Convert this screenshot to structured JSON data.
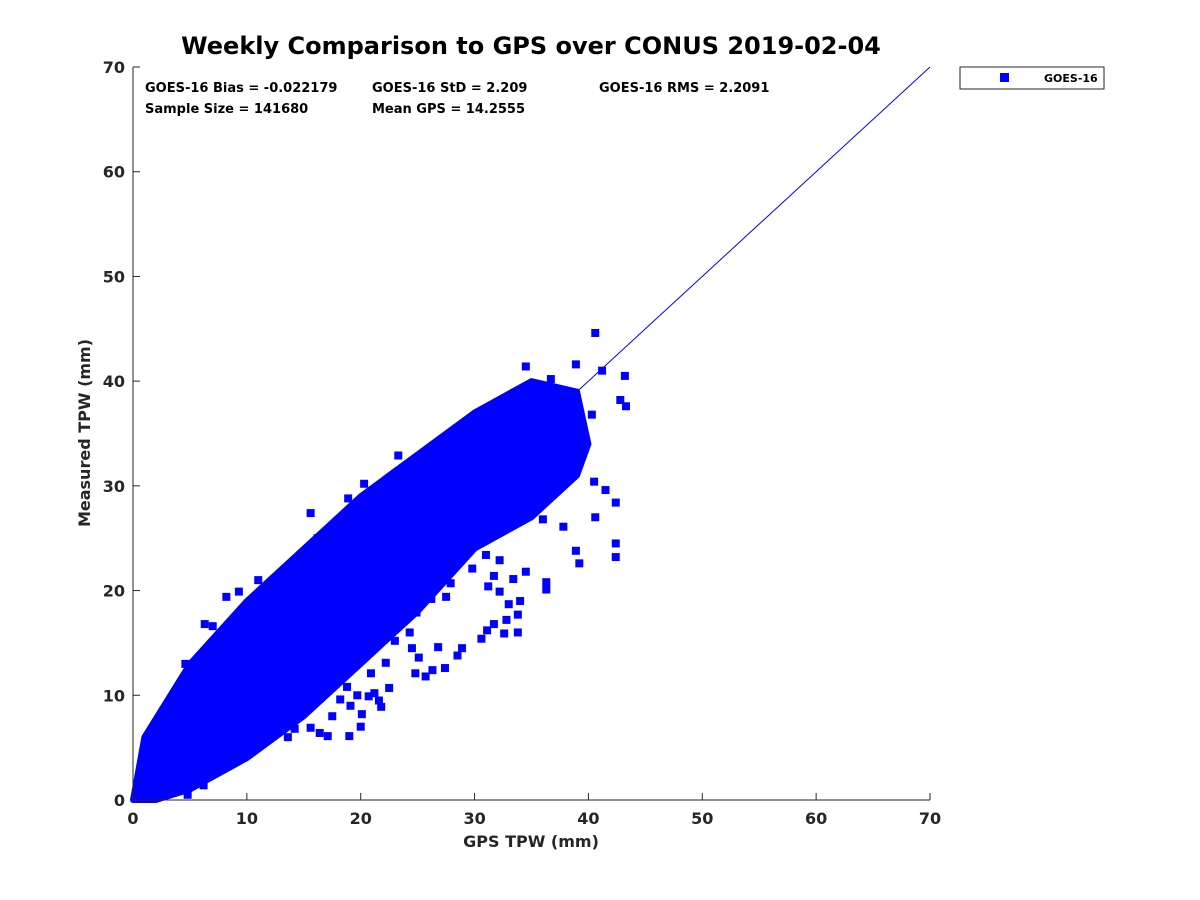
{
  "chart_data": {
    "type": "scatter",
    "title": "Weekly Comparison to GPS over CONUS 2019-02-04",
    "xlabel": "GPS TPW (mm)",
    "ylabel": "Measured TPW (mm)",
    "xlim": [
      0,
      70
    ],
    "ylim": [
      0,
      70
    ],
    "xticks": [
      0,
      10,
      20,
      30,
      40,
      50,
      60,
      70
    ],
    "yticks": [
      0,
      10,
      20,
      30,
      40,
      50,
      60,
      70
    ],
    "grid": false,
    "legend_position": "outside-top-right",
    "marker": "square",
    "reference_line": {
      "x": [
        0,
        70
      ],
      "y": [
        0,
        70
      ]
    },
    "stats": [
      "GOES-16 Bias = -0.022179",
      "GOES-16 StD = 2.209",
      "GOES-16 RMS = 2.2091",
      "Sample Size = 141680",
      "Mean GPS = 14.2555"
    ],
    "series": [
      {
        "name": "GOES-16",
        "color": "#0000ff",
        "dense_band": [
          [
            0,
            0
          ],
          [
            1,
            6
          ],
          [
            5,
            13
          ],
          [
            10,
            19
          ],
          [
            15,
            24
          ],
          [
            20,
            29
          ],
          [
            25,
            33
          ],
          [
            30,
            37
          ],
          [
            35,
            40
          ],
          [
            39,
            39
          ],
          [
            40,
            34
          ],
          [
            39,
            31
          ],
          [
            35,
            27
          ],
          [
            30,
            24
          ],
          [
            25,
            18
          ],
          [
            20,
            13
          ],
          [
            15,
            8
          ],
          [
            10,
            4
          ],
          [
            5,
            1
          ],
          [
            2,
            0
          ]
        ],
        "points": [
          [
            40.6,
            44.6
          ],
          [
            38.9,
            41.6
          ],
          [
            41.2,
            41.0
          ],
          [
            43.2,
            40.5
          ],
          [
            36.7,
            40.2
          ],
          [
            34.5,
            41.4
          ],
          [
            43.3,
            37.6
          ],
          [
            42.8,
            38.2
          ],
          [
            40.3,
            36.8
          ],
          [
            37.1,
            38.4
          ],
          [
            34.8,
            39.1
          ],
          [
            32.0,
            37.8
          ],
          [
            26.4,
            33.5
          ],
          [
            23.3,
            32.9
          ],
          [
            18.9,
            28.8
          ],
          [
            19.4,
            27.3
          ],
          [
            15.6,
            27.4
          ],
          [
            16.2,
            25.0
          ],
          [
            14.6,
            22.4
          ],
          [
            11.0,
            21.0
          ],
          [
            9.3,
            19.9
          ],
          [
            9.7,
            17.5
          ],
          [
            7.0,
            16.6
          ],
          [
            6.3,
            16.8
          ],
          [
            4.6,
            13.0
          ],
          [
            5.0,
            12.4
          ],
          [
            8.2,
            19.4
          ],
          [
            13.3,
            21.9
          ],
          [
            20.3,
            30.2
          ],
          [
            24.6,
            32.3
          ],
          [
            28.7,
            34.5
          ],
          [
            30.6,
            36.3
          ],
          [
            31.9,
            35.4
          ],
          [
            42.4,
            24.5
          ],
          [
            42.4,
            23.2
          ],
          [
            39.2,
            22.6
          ],
          [
            38.9,
            23.8
          ],
          [
            40.6,
            27.0
          ],
          [
            42.4,
            28.4
          ],
          [
            41.5,
            29.6
          ],
          [
            40.5,
            30.4
          ],
          [
            37.8,
            26.1
          ],
          [
            36.0,
            26.8
          ],
          [
            36.3,
            20.8
          ],
          [
            36.3,
            20.1
          ],
          [
            34.5,
            21.8
          ],
          [
            33.4,
            21.1
          ],
          [
            32.2,
            19.9
          ],
          [
            31.2,
            20.4
          ],
          [
            31.7,
            21.4
          ],
          [
            33.0,
            18.7
          ],
          [
            34.0,
            19.0
          ],
          [
            33.8,
            17.7
          ],
          [
            32.8,
            17.2
          ],
          [
            33.8,
            16.0
          ],
          [
            32.6,
            15.9
          ],
          [
            31.7,
            16.8
          ],
          [
            31.1,
            16.2
          ],
          [
            30.6,
            15.4
          ],
          [
            32.2,
            22.9
          ],
          [
            31.0,
            23.4
          ],
          [
            29.8,
            22.1
          ],
          [
            27.9,
            20.7
          ],
          [
            27.5,
            19.4
          ],
          [
            26.2,
            19.2
          ],
          [
            24.9,
            17.9
          ],
          [
            23.6,
            17.1
          ],
          [
            22.5,
            16.5
          ],
          [
            21.6,
            15.7
          ],
          [
            23.0,
            15.2
          ],
          [
            24.3,
            16.0
          ],
          [
            24.5,
            14.5
          ],
          [
            22.2,
            13.1
          ],
          [
            20.9,
            12.1
          ],
          [
            18.8,
            10.8
          ],
          [
            18.2,
            9.6
          ],
          [
            19.1,
            9.0
          ],
          [
            20.1,
            8.2
          ],
          [
            20.0,
            7.0
          ],
          [
            19.0,
            6.1
          ],
          [
            17.1,
            6.1
          ],
          [
            16.4,
            6.4
          ],
          [
            17.5,
            8.0
          ],
          [
            16.2,
            10.2
          ],
          [
            14.7,
            9.5
          ],
          [
            13.2,
            7.8
          ],
          [
            12.4,
            8.3
          ],
          [
            11.5,
            9.5
          ],
          [
            13.9,
            11.2
          ],
          [
            15.5,
            11.8
          ],
          [
            17.3,
            12.6
          ],
          [
            25.7,
            11.8
          ],
          [
            26.3,
            12.4
          ],
          [
            27.4,
            12.6
          ],
          [
            28.5,
            13.8
          ],
          [
            28.9,
            14.5
          ],
          [
            26.8,
            14.6
          ],
          [
            25.1,
            13.6
          ],
          [
            24.8,
            12.1
          ],
          [
            21.6,
            9.5
          ],
          [
            20.7,
            9.9
          ],
          [
            21.8,
            8.9
          ],
          [
            22.5,
            10.7
          ],
          [
            21.2,
            10.2
          ],
          [
            19.7,
            10.0
          ],
          [
            15.6,
            6.9
          ],
          [
            14.2,
            6.8
          ],
          [
            13.6,
            6.0
          ],
          [
            11.6,
            8.1
          ],
          [
            10.6,
            7.2
          ],
          [
            9.4,
            7.8
          ],
          [
            9.8,
            5.9
          ],
          [
            8.3,
            5.1
          ],
          [
            8.1,
            4.2
          ],
          [
            7.5,
            3.7
          ],
          [
            6.9,
            2.7
          ],
          [
            6.2,
            1.4
          ],
          [
            4.8,
            0.5
          ],
          [
            3.4,
            0.8
          ],
          [
            5.9,
            2.3
          ]
        ]
      }
    ]
  }
}
